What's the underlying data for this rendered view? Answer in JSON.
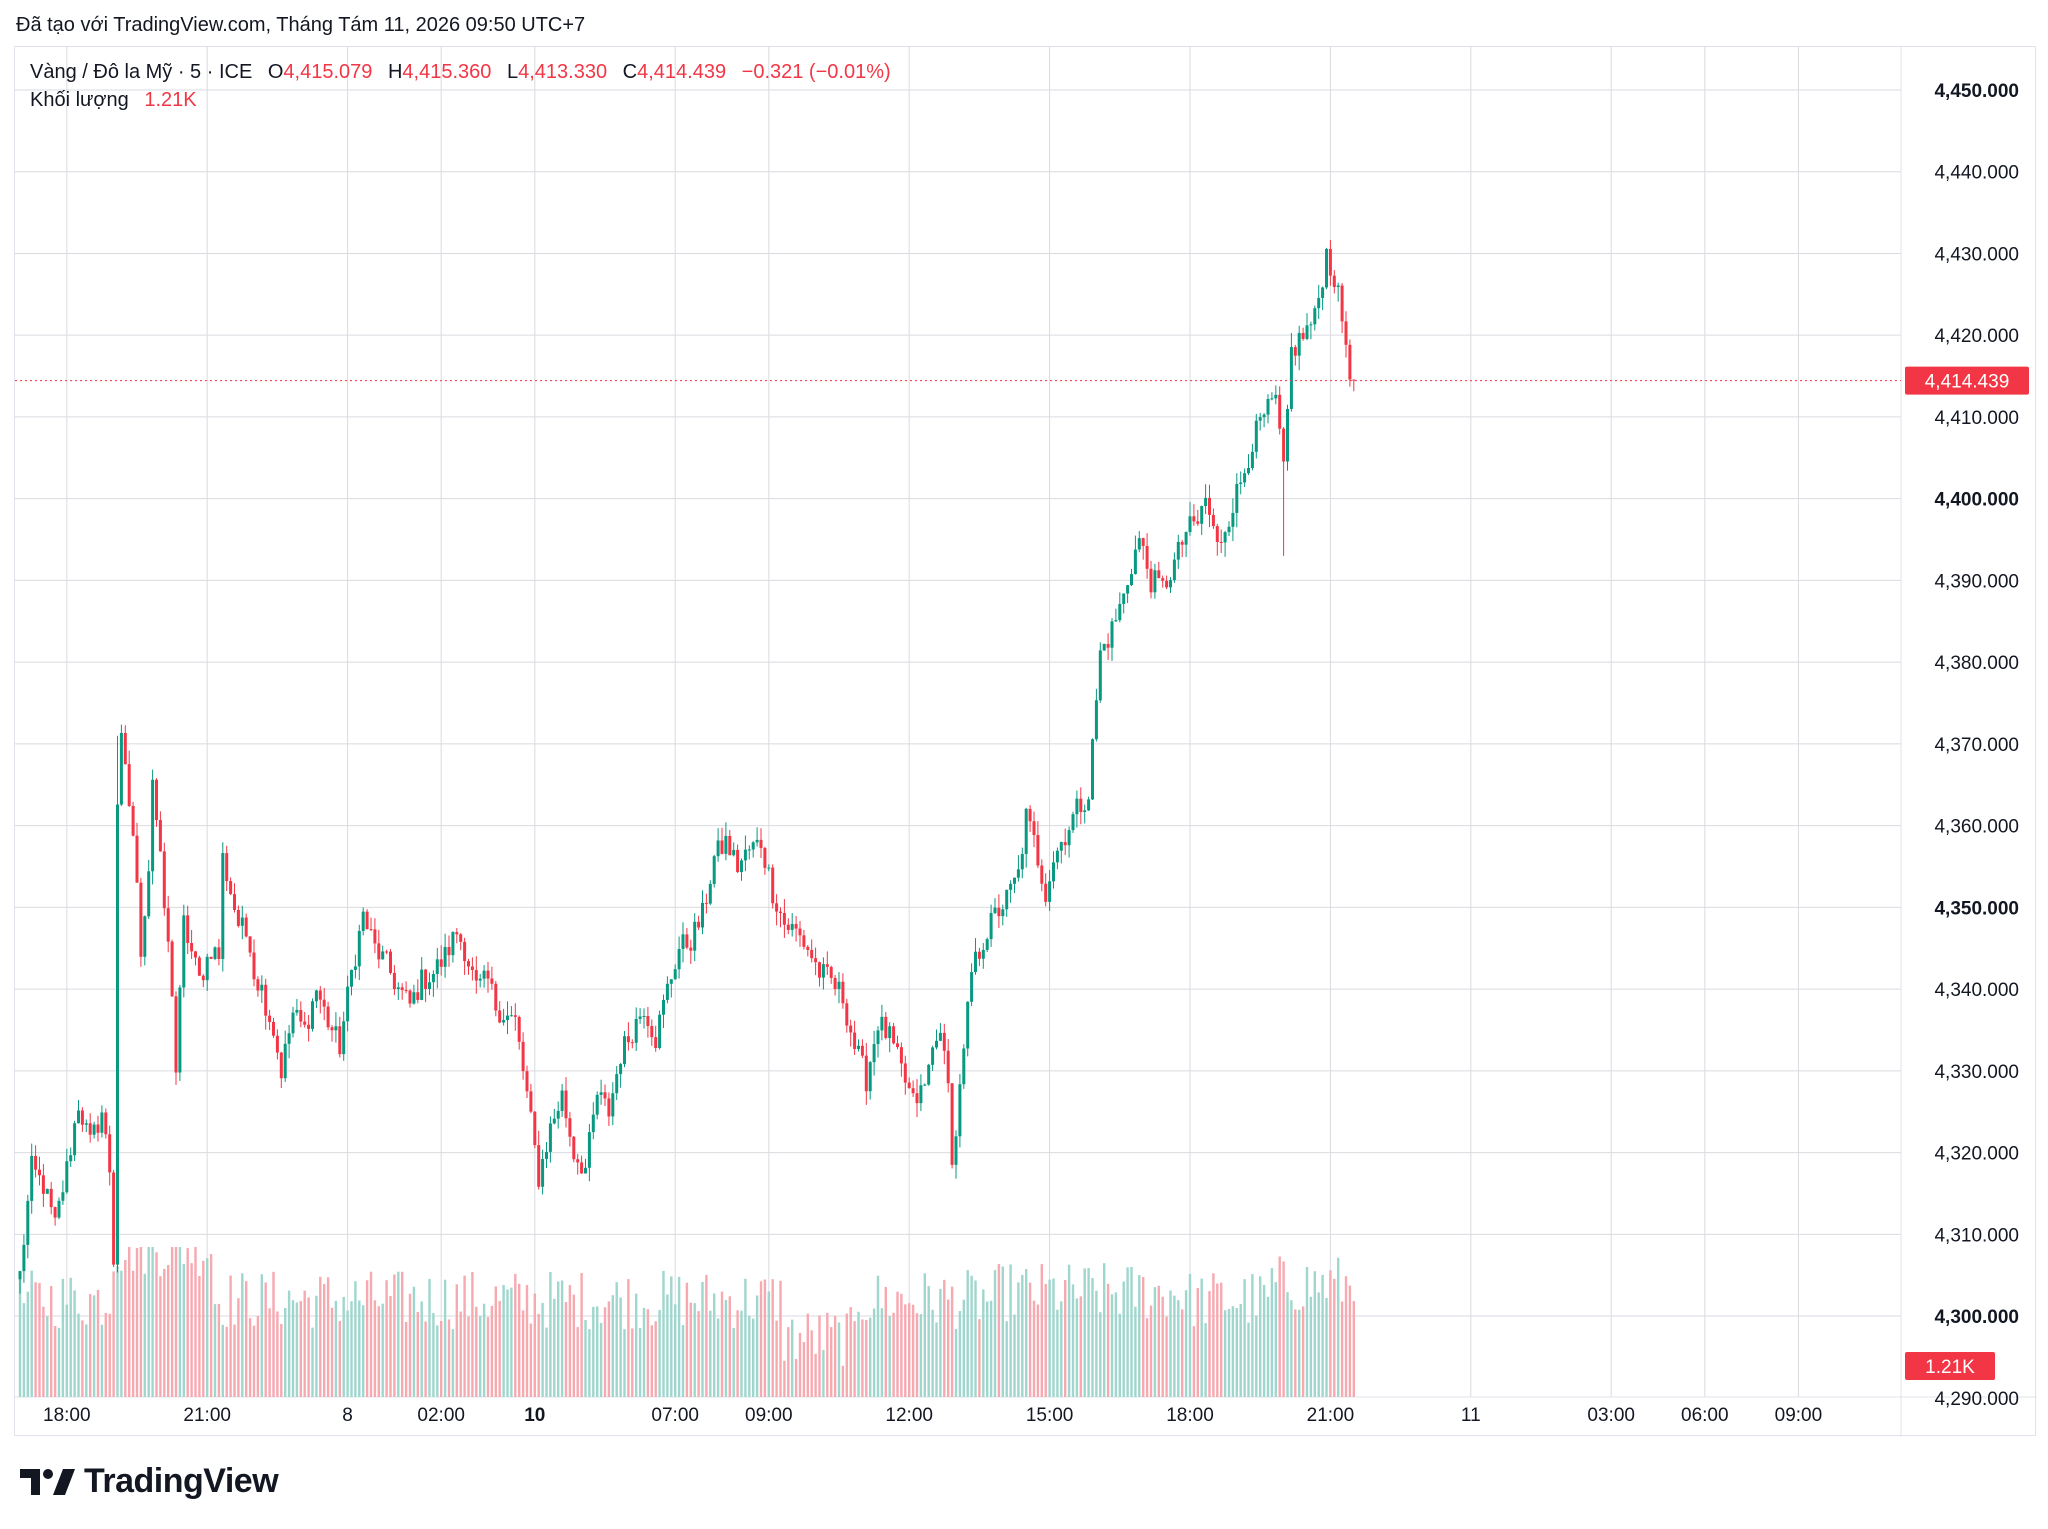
{
  "caption": "Đã tạo với TradingView.com, Tháng Tám 11, 2026 09:50 UTC+7",
  "legend": {
    "symbol": "Vàng / Đô la Mỹ · 5 · ICE",
    "open_label": "O",
    "open": "4,415.079",
    "high_label": "H",
    "high": "4,415.360",
    "low_label": "L",
    "low": "4,413.330",
    "close_label": "C",
    "close": "4,414.439",
    "change": "−0.321 (−0.01%)",
    "volume_label": "Khối lượng",
    "volume": "1.21K"
  },
  "brand": "TradingView",
  "colors": {
    "up": "#089981",
    "down": "#f23645",
    "volume_up": "#9fd6ce",
    "volume_down": "#f7a9b0",
    "grid": "#d9dbe0"
  },
  "chart_data": {
    "type": "candlestick",
    "symbol": "Vàng / Đô la Mỹ",
    "interval": "5",
    "exchange": "ICE",
    "ylim": [
      4296,
      4452
    ],
    "y_ticks": [
      "4,450.000",
      "4,440.000",
      "4,430.000",
      "4,420.000",
      "4,410.000",
      "4,400.000",
      "4,390.000",
      "4,380.000",
      "4,370.000",
      "4,360.000",
      "4,350.000",
      "4,340.000",
      "4,330.000",
      "4,320.000",
      "4,310.000",
      "4,300.000",
      "4,290.000"
    ],
    "y_tick_values": [
      4450,
      4440,
      4430,
      4420,
      4410,
      4400,
      4390,
      4380,
      4370,
      4360,
      4350,
      4340,
      4330,
      4320,
      4310,
      4300,
      4290
    ],
    "bold_ticks": [
      "4,450.000",
      "4,400.000",
      "4,350.000",
      "4,300.000"
    ],
    "x_ticks": [
      {
        "label": "18:00",
        "t": 12
      },
      {
        "label": "21:00",
        "t": 48
      },
      {
        "label": "8",
        "t": 84
      },
      {
        "label": "02:00",
        "t": 108
      },
      {
        "label": "10",
        "t": 132,
        "bold": true
      },
      {
        "label": "07:00",
        "t": 168
      },
      {
        "label": "09:00",
        "t": 192
      },
      {
        "label": "12:00",
        "t": 228
      },
      {
        "label": "15:00",
        "t": 264
      },
      {
        "label": "18:00",
        "t": 300
      },
      {
        "label": "21:00",
        "t": 336
      },
      {
        "label": "11",
        "t": 372
      },
      {
        "label": "03:00",
        "t": 408
      },
      {
        "label": "06:00",
        "t": 432
      },
      {
        "label": "09:00",
        "t": 456
      }
    ],
    "last_price": 4414.439,
    "last_price_label": "4,414.439",
    "last_volume_label": "1.21K",
    "path": [
      [
        0,
        4305
      ],
      [
        3,
        4318
      ],
      [
        6,
        4316
      ],
      [
        9,
        4311
      ],
      [
        12,
        4318
      ],
      [
        15,
        4326
      ],
      [
        18,
        4321
      ],
      [
        21,
        4325
      ],
      [
        23,
        4318
      ],
      [
        24,
        4307
      ],
      [
        25,
        4363
      ],
      [
        26,
        4370
      ],
      [
        29,
        4359
      ],
      [
        31,
        4345
      ],
      [
        33,
        4355
      ],
      [
        34,
        4366
      ],
      [
        37,
        4350
      ],
      [
        39,
        4340
      ],
      [
        40,
        4330
      ],
      [
        42,
        4348
      ],
      [
        46,
        4341
      ],
      [
        49,
        4345
      ],
      [
        51,
        4344
      ],
      [
        52,
        4356
      ],
      [
        56,
        4348
      ],
      [
        59,
        4346
      ],
      [
        60,
        4342
      ],
      [
        62,
        4340
      ],
      [
        65,
        4335
      ],
      [
        67,
        4330
      ],
      [
        70,
        4337
      ],
      [
        73,
        4335
      ],
      [
        76,
        4340
      ],
      [
        79,
        4336
      ],
      [
        82,
        4333
      ],
      [
        85,
        4342
      ],
      [
        88,
        4349
      ],
      [
        91,
        4345
      ],
      [
        94,
        4343
      ],
      [
        97,
        4340
      ],
      [
        100,
        4338
      ],
      [
        103,
        4341
      ],
      [
        106,
        4342
      ],
      [
        109,
        4344
      ],
      [
        112,
        4347
      ],
      [
        114,
        4345
      ],
      [
        117,
        4340
      ],
      [
        120,
        4341
      ],
      [
        122,
        4338
      ],
      [
        124,
        4337
      ],
      [
        127,
        4336
      ],
      [
        130,
        4327
      ],
      [
        133,
        4317
      ],
      [
        136,
        4323
      ],
      [
        139,
        4327
      ],
      [
        142,
        4320
      ],
      [
        145,
        4318
      ],
      [
        148,
        4327
      ],
      [
        151,
        4325
      ],
      [
        154,
        4332
      ],
      [
        157,
        4335
      ],
      [
        160,
        4338
      ],
      [
        163,
        4334
      ],
      [
        166,
        4340
      ],
      [
        169,
        4345
      ],
      [
        172,
        4346
      ],
      [
        175,
        4349
      ],
      [
        178,
        4356
      ],
      [
        181,
        4358
      ],
      [
        184,
        4355
      ],
      [
        187,
        4357
      ],
      [
        190,
        4358
      ],
      [
        193,
        4352
      ],
      [
        196,
        4348
      ],
      [
        199,
        4347
      ],
      [
        202,
        4345
      ],
      [
        205,
        4342
      ],
      [
        208,
        4341
      ],
      [
        211,
        4339
      ],
      [
        214,
        4333
      ],
      [
        217,
        4329
      ],
      [
        220,
        4336
      ],
      [
        223,
        4334
      ],
      [
        226,
        4330
      ],
      [
        229,
        4326
      ],
      [
        232,
        4328
      ],
      [
        235,
        4335
      ],
      [
        238,
        4330
      ],
      [
        239,
        4318
      ],
      [
        242,
        4332
      ],
      [
        244,
        4342
      ],
      [
        247,
        4346
      ],
      [
        250,
        4349
      ],
      [
        253,
        4351
      ],
      [
        256,
        4354
      ],
      [
        258,
        4361
      ],
      [
        260,
        4358
      ],
      [
        263,
        4352
      ],
      [
        265,
        4356
      ],
      [
        268,
        4359
      ],
      [
        271,
        4362
      ],
      [
        274,
        4364
      ],
      [
        277,
        4381
      ],
      [
        280,
        4384
      ],
      [
        283,
        4388
      ],
      [
        285,
        4392
      ],
      [
        287,
        4395
      ],
      [
        290,
        4390
      ],
      [
        293,
        4389
      ],
      [
        296,
        4392
      ],
      [
        299,
        4396
      ],
      [
        302,
        4397
      ],
      [
        304,
        4400
      ],
      [
        307,
        4394
      ],
      [
        310,
        4398
      ],
      [
        313,
        4402
      ],
      [
        316,
        4407
      ],
      [
        319,
        4410
      ],
      [
        322,
        4412
      ],
      [
        324,
        4403
      ],
      [
        326,
        4418
      ],
      [
        329,
        4420
      ],
      [
        332,
        4422
      ],
      [
        335,
        4430
      ],
      [
        337,
        4427
      ],
      [
        339,
        4422
      ],
      [
        341,
        4416
      ],
      [
        342,
        4414.4
      ]
    ],
    "volume_note": "Volume histogram shown at bottom of pane (up = teal, down = red)"
  }
}
